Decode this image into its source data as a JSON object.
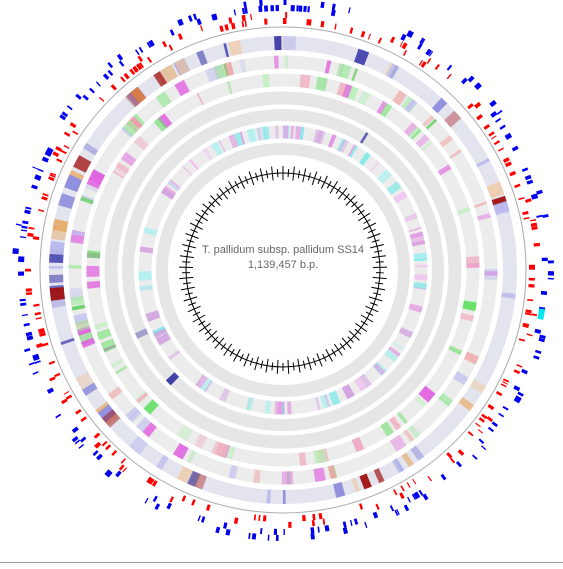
{
  "map": {
    "title": "T. pallidum subsp. pallidum SS14",
    "length": "1,139,457 b.p."
  }
}
